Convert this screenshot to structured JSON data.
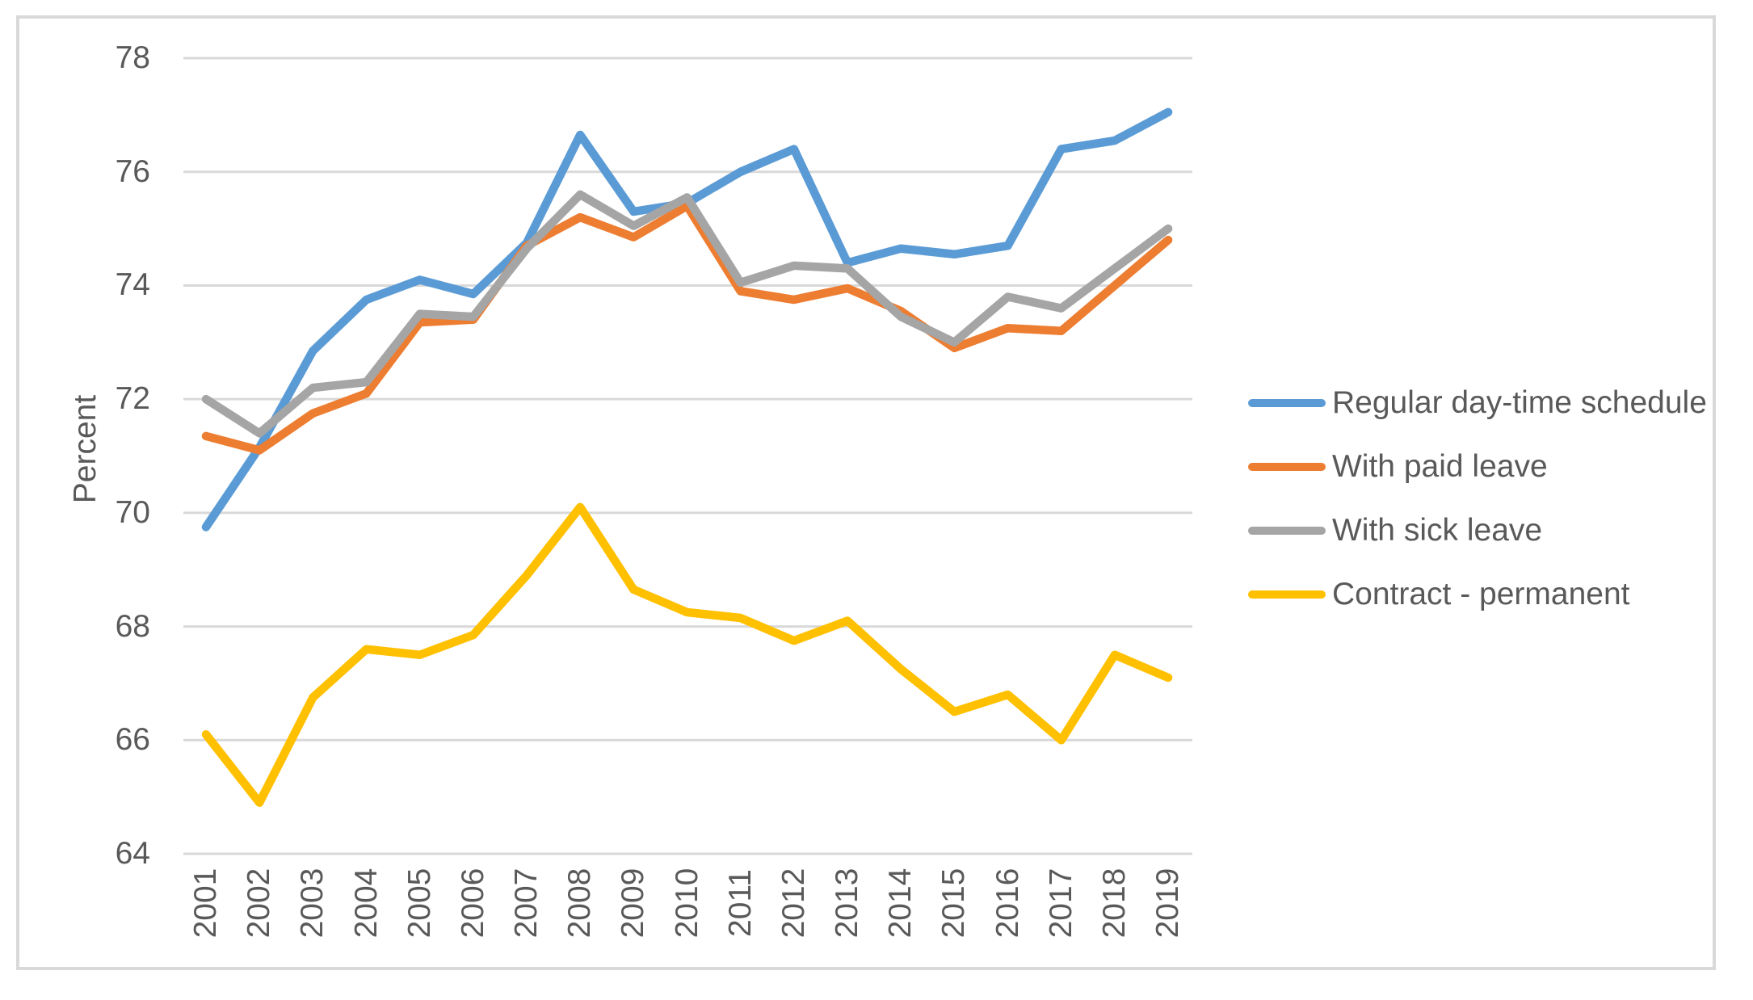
{
  "chart_data": {
    "type": "line",
    "title": "",
    "ylabel": "Percent",
    "xlabel": "",
    "x": [
      2001,
      2002,
      2003,
      2004,
      2005,
      2006,
      2007,
      2008,
      2009,
      2010,
      2011,
      2012,
      2013,
      2014,
      2015,
      2016,
      2017,
      2018,
      2019
    ],
    "ylim": [
      64,
      78
    ],
    "ytick_step": 2,
    "yticks": [
      64,
      66,
      68,
      70,
      72,
      74,
      76,
      78
    ],
    "grid": true,
    "legend_position": "right",
    "series": [
      {
        "name": "Regular day-time schedule",
        "color": "#5B9BD5",
        "values": [
          69.75,
          71.15,
          72.85,
          73.75,
          74.1,
          73.85,
          74.75,
          76.65,
          75.3,
          75.45,
          76.0,
          76.4,
          74.4,
          74.65,
          74.55,
          74.7,
          76.4,
          76.55,
          77.05
        ]
      },
      {
        "name": "With paid leave",
        "color": "#ED7D31",
        "values": [
          71.35,
          71.1,
          71.75,
          72.1,
          73.35,
          73.4,
          74.7,
          75.2,
          74.85,
          75.4,
          73.9,
          73.75,
          73.95,
          73.55,
          72.9,
          73.25,
          73.2,
          74.0,
          74.8
        ]
      },
      {
        "name": "With sick leave",
        "color": "#A5A5A5",
        "values": [
          72.0,
          71.4,
          72.2,
          72.3,
          73.5,
          73.45,
          74.65,
          75.6,
          75.05,
          75.55,
          74.05,
          74.35,
          74.3,
          73.45,
          73.0,
          73.8,
          73.6,
          74.3,
          75.0
        ]
      },
      {
        "name": "Contract - permanent",
        "color": "#FFC000",
        "values": [
          66.1,
          64.9,
          66.75,
          67.6,
          67.5,
          67.85,
          68.9,
          70.1,
          68.65,
          68.25,
          68.15,
          67.75,
          68.1,
          67.25,
          66.5,
          66.8,
          66.0,
          67.5,
          67.1
        ]
      }
    ]
  },
  "colors": {
    "background": "#FFFFFF",
    "grid": "#D9D9D9",
    "frame_border": "#D9D9D9",
    "axis_text": "#595959"
  }
}
